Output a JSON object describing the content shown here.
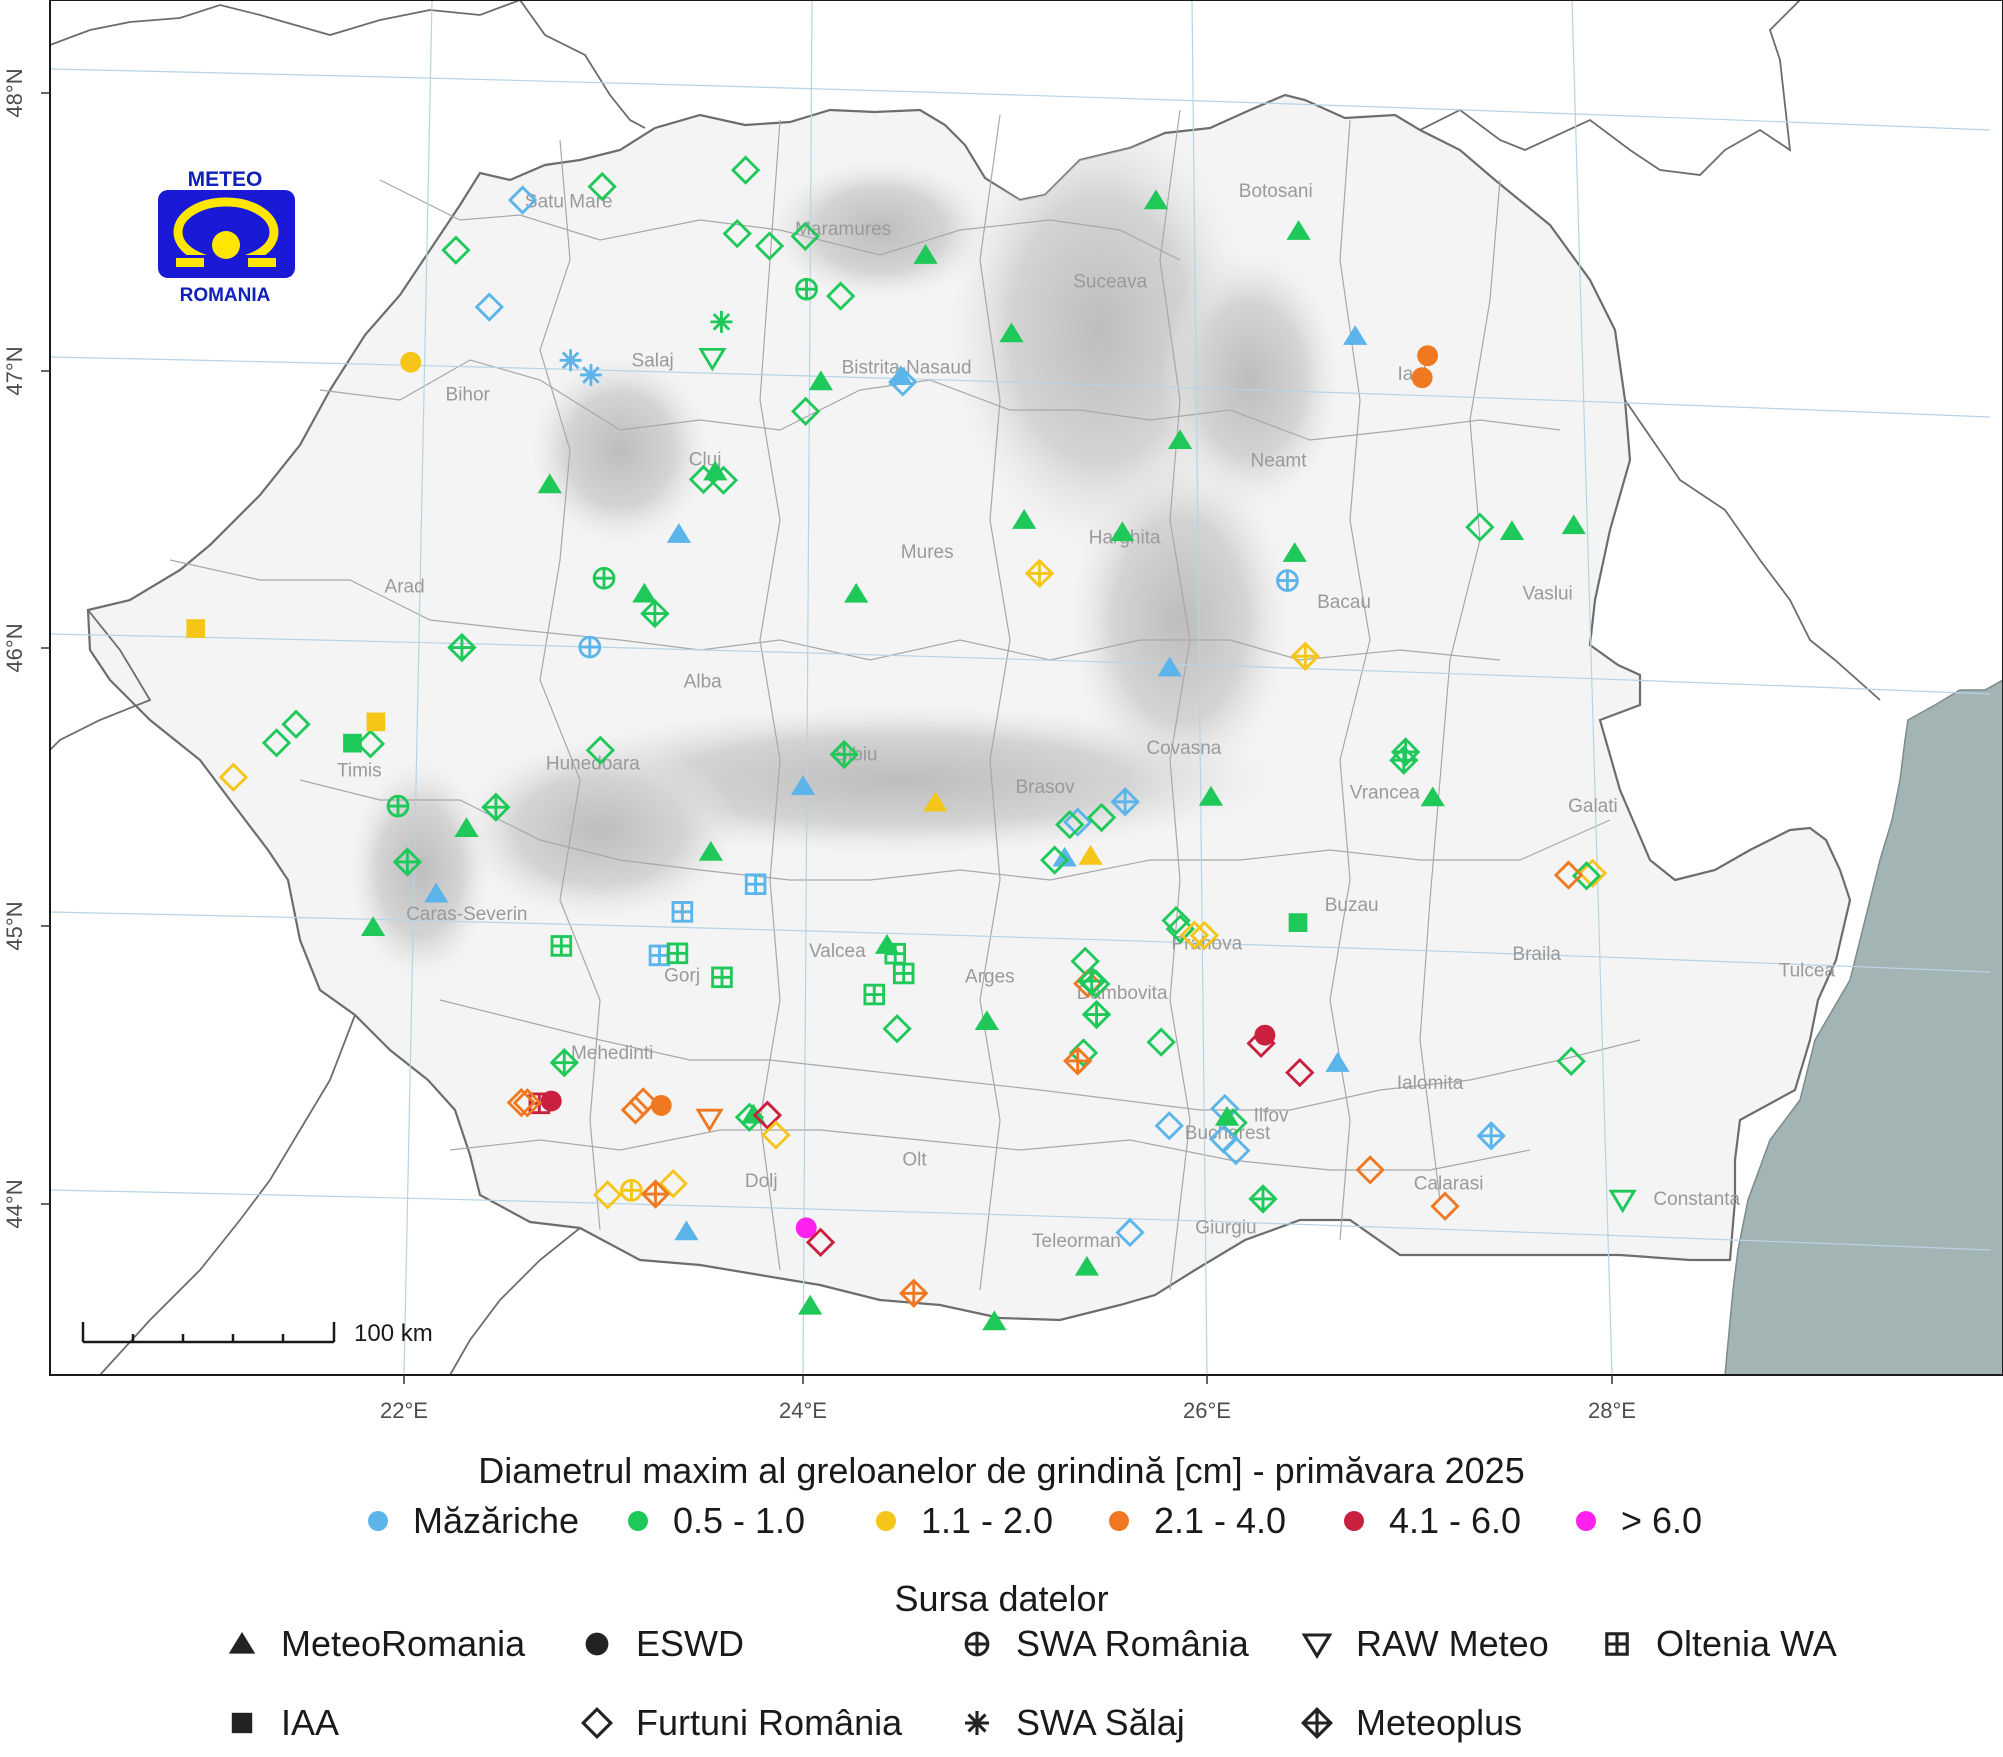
{
  "map": {
    "logo": {
      "top_text": "METEO",
      "bottom_text": "ROMANIA"
    },
    "scale_bar": {
      "label": "100 km"
    },
    "lon_ticks": [
      "22°E",
      "24°E",
      "26°E",
      "28°E"
    ],
    "lat_ticks": [
      "44°N",
      "45°N",
      "46°N",
      "47°N",
      "48°N"
    ],
    "county_labels": [
      {
        "name": "Satu Mare",
        "lon": 22.88,
        "lat": 47.61
      },
      {
        "name": "Maramures",
        "lon": 24.25,
        "lat": 47.55
      },
      {
        "name": "Botosani",
        "lon": 26.42,
        "lat": 47.75
      },
      {
        "name": "Suceava",
        "lon": 25.58,
        "lat": 47.4
      },
      {
        "name": "Salaj",
        "lon": 23.28,
        "lat": 47.05
      },
      {
        "name": "Bistrita-Nasaud",
        "lon": 24.55,
        "lat": 47.06
      },
      {
        "name": "Iasi",
        "lon": 27.08,
        "lat": 47.11
      },
      {
        "name": "Bihor",
        "lon": 22.35,
        "lat": 46.9
      },
      {
        "name": "Neamt",
        "lon": 26.4,
        "lat": 46.78
      },
      {
        "name": "Cluj",
        "lon": 23.53,
        "lat": 46.7
      },
      {
        "name": "Harghita",
        "lon": 25.62,
        "lat": 46.48
      },
      {
        "name": "Mures",
        "lon": 24.63,
        "lat": 46.4
      },
      {
        "name": "Vaslui",
        "lon": 27.73,
        "lat": 46.34
      },
      {
        "name": "Bacau",
        "lon": 26.71,
        "lat": 46.28
      },
      {
        "name": "Arad",
        "lon": 22.01,
        "lat": 46.2
      },
      {
        "name": "Alba",
        "lon": 23.49,
        "lat": 45.9
      },
      {
        "name": "Covasna",
        "lon": 25.89,
        "lat": 45.73
      },
      {
        "name": "Sibiu",
        "lon": 24.25,
        "lat": 45.66
      },
      {
        "name": "Hunedoara",
        "lon": 22.93,
        "lat": 45.59
      },
      {
        "name": "Brasov",
        "lon": 25.19,
        "lat": 45.57
      },
      {
        "name": "Vrancea",
        "lon": 26.89,
        "lat": 45.6
      },
      {
        "name": "Galati",
        "lon": 27.93,
        "lat": 45.58
      },
      {
        "name": "Timis",
        "lon": 21.76,
        "lat": 45.53
      },
      {
        "name": "Buzau",
        "lon": 26.71,
        "lat": 45.19
      },
      {
        "name": "Caras-Severin",
        "lon": 22.28,
        "lat": 45.03
      },
      {
        "name": "Braila",
        "lon": 27.63,
        "lat": 45.04
      },
      {
        "name": "Tulcea",
        "lon": 28.98,
        "lat": 45.02
      },
      {
        "name": "Prahova",
        "lon": 25.98,
        "lat": 45.03
      },
      {
        "name": "Valcea",
        "lon": 24.13,
        "lat": 44.95
      },
      {
        "name": "Gorj",
        "lon": 23.35,
        "lat": 44.84
      },
      {
        "name": "Arges",
        "lon": 24.89,
        "lat": 44.88
      },
      {
        "name": "Dambovita",
        "lon": 25.55,
        "lat": 44.84
      },
      {
        "name": "Mehedinti",
        "lon": 22.99,
        "lat": 44.55
      },
      {
        "name": "Ialomita",
        "lon": 27.08,
        "lat": 44.56
      },
      {
        "name": "Ilfov",
        "lon": 26.28,
        "lat": 44.42
      },
      {
        "name": "Bucharest",
        "lon": 26.06,
        "lat": 44.35
      },
      {
        "name": "Olt",
        "lon": 24.49,
        "lat": 44.21
      },
      {
        "name": "Calarasi",
        "lon": 27.16,
        "lat": 44.2
      },
      {
        "name": "Constanta",
        "lon": 28.4,
        "lat": 44.18
      },
      {
        "name": "Dolj",
        "lon": 23.72,
        "lat": 44.11
      },
      {
        "name": "Giurgiu",
        "lon": 26.04,
        "lat": 44.01
      },
      {
        "name": "Teleorman",
        "lon": 25.29,
        "lat": 43.94
      }
    ]
  },
  "legend": {
    "title_size": "Diametrul maxim al greloanelor de grindină [cm] - primăvara 2025",
    "size_classes": [
      {
        "label": "Măzăriche",
        "color": "#5bb4ea"
      },
      {
        "label": "0.5 - 1.0",
        "color": "#1ec95a"
      },
      {
        "label": "1.1 - 2.0",
        "color": "#f5c518"
      },
      {
        "label": "2.1 - 4.0",
        "color": "#f07821"
      },
      {
        "label": "4.1 - 6.0",
        "color": "#c8203e"
      },
      {
        "label": "> 6.0",
        "color": "#ff22ee"
      }
    ],
    "title_source": "Sursa datelor",
    "sources": [
      {
        "label": "MeteoRomania",
        "shape": "triangle"
      },
      {
        "label": "ESWD",
        "shape": "circle"
      },
      {
        "label": "SWA România",
        "shape": "circle-plus"
      },
      {
        "label": "RAW Meteo",
        "shape": "triangle-down"
      },
      {
        "label": "Oltenia WA",
        "shape": "square-plus"
      },
      {
        "label": "IAA",
        "shape": "square"
      },
      {
        "label": "Furtuni România",
        "shape": "diamond"
      },
      {
        "label": "SWA Sălaj",
        "shape": "asterisk"
      },
      {
        "label": "Meteoplus",
        "shape": "diamond-plus"
      }
    ]
  },
  "observations": [
    {
      "lon": 22.65,
      "lat": 47.63,
      "s": "diamond",
      "c": 0
    },
    {
      "lon": 23.05,
      "lat": 47.69,
      "s": "diamond",
      "c": 1
    },
    {
      "lon": 23.77,
      "lat": 47.77,
      "s": "diamond",
      "c": 1
    },
    {
      "lon": 22.31,
      "lat": 47.44,
      "s": "diamond",
      "c": 1
    },
    {
      "lon": 23.72,
      "lat": 47.54,
      "s": "diamond",
      "c": 1
    },
    {
      "lon": 23.88,
      "lat": 47.5,
      "s": "diamond",
      "c": 1
    },
    {
      "lon": 24.06,
      "lat": 47.54,
      "s": "diamond",
      "c": 1
    },
    {
      "lon": 24.23,
      "lat": 47.33,
      "s": "diamond",
      "c": 1
    },
    {
      "lon": 22.47,
      "lat": 47.24,
      "s": "diamond",
      "c": 0
    },
    {
      "lon": 24.04,
      "lat": 46.91,
      "s": "diamond",
      "c": 1
    },
    {
      "lon": 24.06,
      "lat": 47.35,
      "s": "circle-plus",
      "c": 1
    },
    {
      "lon": 23.63,
      "lat": 47.22,
      "s": "asterisk",
      "c": 1
    },
    {
      "lon": 22.87,
      "lat": 47.06,
      "s": "asterisk",
      "c": 0
    },
    {
      "lon": 22.97,
      "lat": 47.01,
      "s": "asterisk",
      "c": 0
    },
    {
      "lon": 23.58,
      "lat": 47.09,
      "s": "triangle-down",
      "c": 1
    },
    {
      "lon": 22.07,
      "lat": 47.03,
      "s": "circle",
      "c": 2
    },
    {
      "lon": 24.12,
      "lat": 47.02,
      "s": "triangle",
      "c": 1
    },
    {
      "lon": 24.66,
      "lat": 47.49,
      "s": "triangle",
      "c": 1
    },
    {
      "lon": 25.08,
      "lat": 47.22,
      "s": "triangle",
      "c": 1
    },
    {
      "lon": 24.53,
      "lat": 47.03,
      "s": "diamond",
      "c": 0
    },
    {
      "lon": 24.52,
      "lat": 47.05,
      "s": "triangle",
      "c": 0
    },
    {
      "lon": 25.82,
      "lat": 47.72,
      "s": "triangle",
      "c": 1
    },
    {
      "lon": 26.53,
      "lat": 47.63,
      "s": "triangle",
      "c": 1
    },
    {
      "lon": 26.8,
      "lat": 47.26,
      "s": "triangle",
      "c": 0
    },
    {
      "lon": 27.16,
      "lat": 47.2,
      "s": "circle",
      "c": 3
    },
    {
      "lon": 27.13,
      "lat": 47.12,
      "s": "circle",
      "c": 3
    },
    {
      "lon": 25.91,
      "lat": 46.86,
      "s": "triangle",
      "c": 1
    },
    {
      "lon": 23.52,
      "lat": 46.65,
      "s": "diamond",
      "c": 1
    },
    {
      "lon": 23.62,
      "lat": 46.65,
      "s": "diamond",
      "c": 1
    },
    {
      "lon": 23.58,
      "lat": 46.68,
      "s": "triangle",
      "c": 1
    },
    {
      "lon": 22.75,
      "lat": 46.61,
      "s": "triangle",
      "c": 1
    },
    {
      "lon": 23.39,
      "lat": 46.45,
      "s": "triangle",
      "c": 0
    },
    {
      "lon": 25.12,
      "lat": 46.55,
      "s": "triangle",
      "c": 1
    },
    {
      "lon": 25.61,
      "lat": 46.52,
      "s": "triangle",
      "c": 1
    },
    {
      "lon": 27.4,
      "lat": 46.59,
      "s": "diamond",
      "c": 1
    },
    {
      "lon": 27.56,
      "lat": 46.58,
      "s": "triangle",
      "c": 1
    },
    {
      "lon": 27.87,
      "lat": 46.61,
      "s": "triangle",
      "c": 1
    },
    {
      "lon": 26.47,
      "lat": 46.47,
      "s": "triangle",
      "c": 1
    },
    {
      "lon": 26.43,
      "lat": 46.37,
      "s": "circle-plus",
      "c": 0
    },
    {
      "lon": 25.19,
      "lat": 46.36,
      "s": "diamond-plus",
      "c": 2
    },
    {
      "lon": 23.01,
      "lat": 46.28,
      "s": "circle-plus",
      "c": 1
    },
    {
      "lon": 23.21,
      "lat": 46.23,
      "s": "triangle",
      "c": 1
    },
    {
      "lon": 23.26,
      "lat": 46.16,
      "s": "diamond-plus",
      "c": 1
    },
    {
      "lon": 24.27,
      "lat": 46.26,
      "s": "triangle",
      "c": 1
    },
    {
      "lon": 26.51,
      "lat": 46.1,
      "s": "diamond-plus",
      "c": 2
    },
    {
      "lon": 25.83,
      "lat": 46.04,
      "s": "triangle",
      "c": 0
    },
    {
      "lon": 22.29,
      "lat": 46.01,
      "s": "diamond-plus",
      "c": 1
    },
    {
      "lon": 22.93,
      "lat": 46.03,
      "s": "circle-plus",
      "c": 0
    },
    {
      "lon": 20.96,
      "lat": 46.04,
      "s": "square",
      "c": 2
    },
    {
      "lon": 26.99,
      "lat": 45.74,
      "s": "diamond-plus",
      "c": 1
    },
    {
      "lon": 27.0,
      "lat": 45.77,
      "s": "diamond-plus",
      "c": 1
    },
    {
      "lon": 27.13,
      "lat": 45.61,
      "s": "triangle",
      "c": 1
    },
    {
      "lon": 21.45,
      "lat": 45.71,
      "s": "diamond",
      "c": 1
    },
    {
      "lon": 21.35,
      "lat": 45.64,
      "s": "diamond",
      "c": 1
    },
    {
      "lon": 21.73,
      "lat": 45.65,
      "s": "square",
      "c": 1
    },
    {
      "lon": 21.82,
      "lat": 45.65,
      "s": "diamond",
      "c": 1
    },
    {
      "lon": 21.85,
      "lat": 45.73,
      "s": "square",
      "c": 2
    },
    {
      "lon": 21.13,
      "lat": 45.51,
      "s": "diamond",
      "c": 2
    },
    {
      "lon": 22.97,
      "lat": 45.66,
      "s": "diamond",
      "c": 1
    },
    {
      "lon": 24.19,
      "lat": 45.68,
      "s": "diamond-plus",
      "c": 1
    },
    {
      "lon": 23.98,
      "lat": 45.56,
      "s": "triangle",
      "c": 0
    },
    {
      "lon": 24.64,
      "lat": 45.52,
      "s": "triangle",
      "c": 2
    },
    {
      "lon": 25.59,
      "lat": 45.55,
      "s": "diamond-plus",
      "c": 0
    },
    {
      "lon": 26.02,
      "lat": 45.58,
      "s": "triangle",
      "c": 1
    },
    {
      "lon": 25.35,
      "lat": 45.47,
      "s": "diamond",
      "c": 0
    },
    {
      "lon": 25.47,
      "lat": 45.49,
      "s": "diamond",
      "c": 1
    },
    {
      "lon": 25.31,
      "lat": 45.46,
      "s": "diamond",
      "c": 1
    },
    {
      "lon": 25.41,
      "lat": 45.35,
      "s": "triangle",
      "c": 2
    },
    {
      "lon": 25.28,
      "lat": 45.34,
      "s": "triangle",
      "c": 0
    },
    {
      "lon": 25.23,
      "lat": 45.33,
      "s": "diamond",
      "c": 1
    },
    {
      "lon": 21.95,
      "lat": 45.43,
      "s": "circle-plus",
      "c": 1
    },
    {
      "lon": 22.44,
      "lat": 45.44,
      "s": "diamond-plus",
      "c": 1
    },
    {
      "lon": 22.29,
      "lat": 45.36,
      "s": "triangle",
      "c": 1
    },
    {
      "lon": 23.51,
      "lat": 45.31,
      "s": "triangle",
      "c": 1
    },
    {
      "lon": 21.99,
      "lat": 45.23,
      "s": "diamond-plus",
      "c": 1
    },
    {
      "lon": 23.73,
      "lat": 45.2,
      "s": "square-plus",
      "c": 0
    },
    {
      "lon": 22.13,
      "lat": 45.12,
      "s": "triangle",
      "c": 0
    },
    {
      "lon": 23.36,
      "lat": 45.09,
      "s": "square-plus",
      "c": 0
    },
    {
      "lon": 25.83,
      "lat": 45.13,
      "s": "diamond",
      "c": 1
    },
    {
      "lon": 25.85,
      "lat": 45.1,
      "s": "diamond",
      "c": 1
    },
    {
      "lon": 25.92,
      "lat": 45.08,
      "s": "diamond",
      "c": 2
    },
    {
      "lon": 25.97,
      "lat": 45.08,
      "s": "diamond",
      "c": 2
    },
    {
      "lon": 26.44,
      "lat": 45.14,
      "s": "square",
      "c": 1
    },
    {
      "lon": 27.92,
      "lat": 45.36,
      "s": "diamond",
      "c": 2
    },
    {
      "lon": 27.89,
      "lat": 45.35,
      "s": "diamond",
      "c": 1
    },
    {
      "lon": 27.8,
      "lat": 45.35,
      "s": "diamond",
      "c": 3
    },
    {
      "lon": 21.81,
      "lat": 44.99,
      "s": "triangle",
      "c": 1
    },
    {
      "lon": 22.75,
      "lat": 44.95,
      "s": "square-plus",
      "c": 1
    },
    {
      "lon": 23.24,
      "lat": 44.93,
      "s": "square-plus",
      "c": 0
    },
    {
      "lon": 23.33,
      "lat": 44.94,
      "s": "square-plus",
      "c": 1
    },
    {
      "lon": 23.55,
      "lat": 44.86,
      "s": "square-plus",
      "c": 1
    },
    {
      "lon": 24.38,
      "lat": 45.0,
      "s": "triangle",
      "c": 1
    },
    {
      "lon": 24.42,
      "lat": 44.97,
      "s": "square-plus",
      "c": 1
    },
    {
      "lon": 24.46,
      "lat": 44.9,
      "s": "square-plus",
      "c": 1
    },
    {
      "lon": 24.31,
      "lat": 44.82,
      "s": "square-plus",
      "c": 1
    },
    {
      "lon": 25.37,
      "lat": 44.97,
      "s": "diamond",
      "c": 1
    },
    {
      "lon": 25.38,
      "lat": 44.89,
      "s": "diamond",
      "c": 3
    },
    {
      "lon": 25.4,
      "lat": 44.9,
      "s": "diamond-plus",
      "c": 1
    },
    {
      "lon": 25.42,
      "lat": 44.89,
      "s": "diamond",
      "c": 1
    },
    {
      "lon": 25.42,
      "lat": 44.78,
      "s": "diamond-plus",
      "c": 1
    },
    {
      "lon": 24.87,
      "lat": 44.74,
      "s": "triangle",
      "c": 1
    },
    {
      "lon": 24.42,
      "lat": 44.7,
      "s": "diamond",
      "c": 1
    },
    {
      "lon": 25.74,
      "lat": 44.69,
      "s": "diamond",
      "c": 1
    },
    {
      "lon": 26.26,
      "lat": 44.73,
      "s": "circle",
      "c": 4
    },
    {
      "lon": 26.24,
      "lat": 44.7,
      "s": "diamond",
      "c": 4
    },
    {
      "lon": 26.62,
      "lat": 44.64,
      "s": "triangle",
      "c": 0
    },
    {
      "lon": 27.79,
      "lat": 44.68,
      "s": "diamond",
      "c": 1
    },
    {
      "lon": 25.35,
      "lat": 44.64,
      "s": "diamond",
      "c": 1
    },
    {
      "lon": 25.32,
      "lat": 44.61,
      "s": "diamond-plus",
      "c": 3
    },
    {
      "lon": 26.43,
      "lat": 44.6,
      "s": "diamond",
      "c": 4
    },
    {
      "lon": 22.75,
      "lat": 44.53,
      "s": "diamond-plus",
      "c": 1
    },
    {
      "lon": 26.05,
      "lat": 44.46,
      "s": "diamond",
      "c": 0
    },
    {
      "lon": 26.06,
      "lat": 44.43,
      "s": "triangle",
      "c": 1
    },
    {
      "lon": 26.09,
      "lat": 44.41,
      "s": "diamond",
      "c": 1
    },
    {
      "lon": 25.77,
      "lat": 44.39,
      "s": "diamond",
      "c": 0
    },
    {
      "lon": 26.04,
      "lat": 44.35,
      "s": "diamond",
      "c": 0
    },
    {
      "lon": 26.1,
      "lat": 44.31,
      "s": "diamond",
      "c": 0
    },
    {
      "lon": 27.38,
      "lat": 44.4,
      "s": "diamond-plus",
      "c": 0
    },
    {
      "lon": 22.68,
      "lat": 44.39,
      "s": "circle",
      "c": 4
    },
    {
      "lon": 22.62,
      "lat": 44.38,
      "s": "square-plus",
      "c": 4
    },
    {
      "lon": 22.53,
      "lat": 44.38,
      "s": "diamond",
      "c": 3
    },
    {
      "lon": 22.56,
      "lat": 44.38,
      "s": "diamond",
      "c": 3
    },
    {
      "lon": 23.14,
      "lat": 44.4,
      "s": "diamond",
      "c": 3
    },
    {
      "lon": 23.23,
      "lat": 44.39,
      "s": "circle",
      "c": 3
    },
    {
      "lon": 23.1,
      "lat": 44.37,
      "s": "diamond",
      "c": 3
    },
    {
      "lon": 23.47,
      "lat": 44.35,
      "s": "triangle-down",
      "c": 3
    },
    {
      "lon": 23.67,
      "lat": 44.36,
      "s": "diamond",
      "c": 1
    },
    {
      "lon": 23.69,
      "lat": 44.37,
      "s": "triangle",
      "c": 1
    },
    {
      "lon": 23.76,
      "lat": 44.37,
      "s": "diamond",
      "c": 4
    },
    {
      "lon": 23.8,
      "lat": 44.3,
      "s": "diamond",
      "c": 2
    },
    {
      "lon": 26.77,
      "lat": 44.26,
      "s": "diamond",
      "c": 3
    },
    {
      "lon": 28.03,
      "lat": 44.19,
      "s": "triangle-down",
      "c": 1
    },
    {
      "lon": 26.23,
      "lat": 44.14,
      "s": "diamond-plus",
      "c": 1
    },
    {
      "lon": 27.14,
      "lat": 44.14,
      "s": "diamond",
      "c": 3
    },
    {
      "lon": 23.28,
      "lat": 44.11,
      "s": "diamond",
      "c": 2
    },
    {
      "lon": 23.07,
      "lat": 44.08,
      "s": "circle-plus",
      "c": 2
    },
    {
      "lon": 23.19,
      "lat": 44.07,
      "s": "diamond-plus",
      "c": 3
    },
    {
      "lon": 22.95,
      "lat": 44.06,
      "s": "diamond",
      "c": 2
    },
    {
      "lon": 25.56,
      "lat": 44.0,
      "s": "diamond",
      "c": 0
    },
    {
      "lon": 23.34,
      "lat": 43.94,
      "s": "triangle",
      "c": 0
    },
    {
      "lon": 23.94,
      "lat": 43.97,
      "s": "circle",
      "c": 5
    },
    {
      "lon": 24.01,
      "lat": 43.92,
      "s": "diamond",
      "c": 4
    },
    {
      "lon": 25.34,
      "lat": 43.87,
      "s": "triangle",
      "c": 1
    },
    {
      "lon": 24.47,
      "lat": 43.75,
      "s": "diamond-plus",
      "c": 3
    },
    {
      "lon": 23.95,
      "lat": 43.69,
      "s": "triangle",
      "c": 1
    },
    {
      "lon": 24.87,
      "lat": 43.66,
      "s": "triangle",
      "c": 1
    }
  ]
}
